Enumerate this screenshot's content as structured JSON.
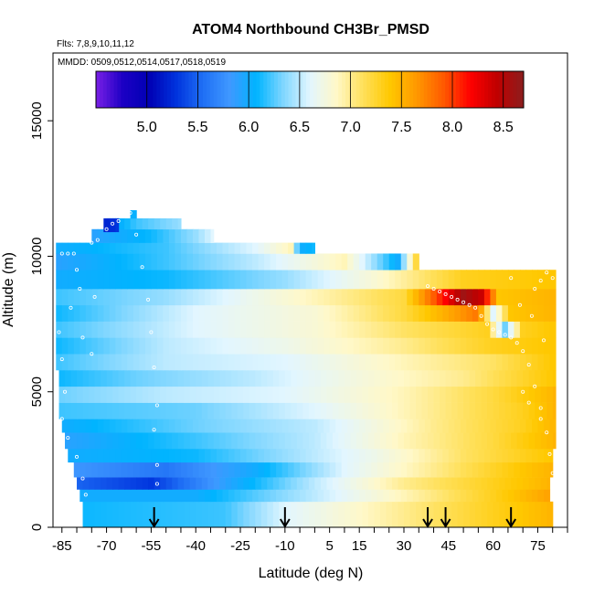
{
  "chart_data": {
    "type": "heatmap",
    "title": "ATOM4 Northbound CH3Br_PMSD",
    "subtitle_flights": "Flts: 7,8,9,10,11,12",
    "subtitle_dates": "MMDD: 0509,0512,0514,0517,0518,0519",
    "xlabel": "Latitude (deg N)",
    "ylabel": "Altitude (m)",
    "xlim": [
      -88,
      85
    ],
    "ylim": [
      0,
      17500
    ],
    "x_ticks": [
      -85,
      -80,
      -75,
      -70,
      -65,
      -60,
      -55,
      -50,
      -45,
      -40,
      -35,
      -30,
      -25,
      -20,
      -15,
      -10,
      -5,
      0,
      5,
      10,
      15,
      20,
      25,
      30,
      35,
      40,
      45,
      50,
      55,
      60,
      65,
      70,
      75,
      80,
      85
    ],
    "x_tick_labels": [
      "-85",
      "-70",
      "-55",
      "-40",
      "-25",
      "-10",
      "5",
      "15",
      "30",
      "45",
      "60",
      "75"
    ],
    "x_tick_label_values": [
      -85,
      -70,
      -55,
      -40,
      -25,
      -10,
      5,
      15,
      30,
      45,
      60,
      75
    ],
    "y_ticks": [
      0,
      5000,
      10000,
      15000
    ],
    "y_tick_labels": [
      "0",
      "5000",
      "10000",
      "15000"
    ],
    "colorbar": {
      "min": 4.5,
      "max": 8.7,
      "ticks": [
        5.0,
        5.5,
        6.0,
        6.5,
        7.0,
        7.5,
        8.0,
        8.5
      ],
      "tick_labels": [
        "5.0",
        "5.5",
        "6.0",
        "6.5",
        "7.0",
        "7.5",
        "8.0",
        "8.5"
      ],
      "colors": [
        "#7a1fe6",
        "#1c00c4",
        "#0000b4",
        "#0033dd",
        "#1f6ff5",
        "#3f98ff",
        "#00b4ff",
        "#7fd6ff",
        "#e2f6ff",
        "#fff8c8",
        "#ffe05a",
        "#ffc800",
        "#ff9800",
        "#ff5a00",
        "#ff0000",
        "#c00000",
        "#8c1e1e"
      ]
    },
    "profile_markers_lat": [
      -54,
      -10,
      38,
      44,
      66
    ],
    "layers": [
      {
        "alt": [
          0,
          950
        ],
        "lat": [
          -78,
          80
        ],
        "values": [
          [
            -78,
            6.1
          ],
          [
            -30,
            6.2
          ],
          [
            -10,
            6.6
          ],
          [
            20,
            6.9
          ],
          [
            50,
            7.2
          ],
          [
            80,
            7.5
          ]
        ]
      },
      {
        "alt": [
          950,
          1400
        ],
        "lat": [
          -79,
          79
        ],
        "values": [
          [
            -79,
            6.0
          ],
          [
            -40,
            6.0
          ],
          [
            0,
            6.5
          ],
          [
            30,
            6.9
          ],
          [
            60,
            7.3
          ],
          [
            79,
            7.6
          ]
        ]
      },
      {
        "alt": [
          1400,
          1850
        ],
        "lat": [
          -80,
          79
        ],
        "values": [
          [
            -80,
            5.5
          ],
          [
            -55,
            5.3
          ],
          [
            -30,
            5.9
          ],
          [
            0,
            6.5
          ],
          [
            30,
            7.0
          ],
          [
            60,
            7.3
          ],
          [
            79,
            7.5
          ]
        ]
      },
      {
        "alt": [
          1850,
          2400
        ],
        "lat": [
          -81,
          80
        ],
        "values": [
          [
            -81,
            5.8
          ],
          [
            -50,
            5.6
          ],
          [
            -20,
            6.0
          ],
          [
            10,
            6.6
          ],
          [
            40,
            7.0
          ],
          [
            70,
            7.4
          ],
          [
            80,
            7.5
          ]
        ]
      },
      {
        "alt": [
          2400,
          2900
        ],
        "lat": [
          -83,
          80
        ],
        "values": [
          [
            -83,
            6.0
          ],
          [
            -40,
            6.1
          ],
          [
            -10,
            6.4
          ],
          [
            20,
            6.7
          ],
          [
            50,
            7.1
          ],
          [
            80,
            7.4
          ]
        ]
      },
      {
        "alt": [
          2900,
          3500
        ],
        "lat": [
          -84,
          81
        ],
        "values": [
          [
            -84,
            5.9
          ],
          [
            -40,
            6.2
          ],
          [
            0,
            6.5
          ],
          [
            30,
            6.9
          ],
          [
            60,
            7.2
          ],
          [
            81,
            7.5
          ]
        ]
      },
      {
        "alt": [
          3500,
          4000
        ],
        "lat": [
          -85,
          81
        ],
        "values": [
          [
            -85,
            6.0
          ],
          [
            -40,
            6.3
          ],
          [
            0,
            6.5
          ],
          [
            40,
            7.0
          ],
          [
            70,
            7.3
          ],
          [
            81,
            7.5
          ]
        ]
      },
      {
        "alt": [
          4000,
          4600
        ],
        "lat": [
          -86,
          81
        ],
        "values": [
          [
            -86,
            6.2
          ],
          [
            -40,
            6.3
          ],
          [
            0,
            6.6
          ],
          [
            40,
            7.0
          ],
          [
            70,
            7.3
          ],
          [
            81,
            7.5
          ]
        ]
      },
      {
        "alt": [
          4600,
          5200
        ],
        "lat": [
          -86,
          81
        ],
        "values": [
          [
            -86,
            6.3
          ],
          [
            -50,
            6.5
          ],
          [
            -10,
            6.6
          ],
          [
            30,
            6.9
          ],
          [
            60,
            7.2
          ],
          [
            81,
            7.5
          ]
        ]
      },
      {
        "alt": [
          5200,
          5800
        ],
        "lat": [
          -86,
          81
        ],
        "values": [
          [
            -86,
            6.1
          ],
          [
            -60,
            6.3
          ],
          [
            -20,
            6.5
          ],
          [
            20,
            6.8
          ],
          [
            50,
            7.0
          ],
          [
            81,
            7.4
          ]
        ]
      },
      {
        "alt": [
          5800,
          6400
        ],
        "lat": [
          -87,
          81
        ],
        "values": [
          [
            -87,
            6.2
          ],
          [
            -50,
            6.5
          ],
          [
            -10,
            6.6
          ],
          [
            30,
            6.9
          ],
          [
            60,
            7.1
          ],
          [
            81,
            7.4
          ]
        ]
      },
      {
        "alt": [
          6400,
          7000
        ],
        "lat": [
          -87,
          81
        ],
        "values": [
          [
            -87,
            6.1
          ],
          [
            -50,
            6.5
          ],
          [
            -10,
            6.7
          ],
          [
            30,
            7.0
          ],
          [
            60,
            7.3
          ],
          [
            81,
            7.4
          ]
        ]
      },
      {
        "alt": [
          7000,
          7600
        ],
        "lat": [
          -87,
          81
        ],
        "values": [
          [
            -87,
            6.2
          ],
          [
            -40,
            6.6
          ],
          [
            0,
            6.8
          ],
          [
            30,
            7.1
          ],
          [
            58,
            7.3
          ],
          [
            64,
            6.3
          ],
          [
            70,
            7.3
          ],
          [
            81,
            7.4
          ]
        ]
      },
      {
        "alt": [
          7600,
          8200
        ],
        "lat": [
          -87,
          81
        ],
        "values": [
          [
            -87,
            6.1
          ],
          [
            -40,
            6.6
          ],
          [
            0,
            6.8
          ],
          [
            30,
            7.2
          ],
          [
            55,
            7.8
          ],
          [
            60,
            6.6
          ],
          [
            66,
            7.4
          ],
          [
            81,
            7.5
          ]
        ]
      },
      {
        "alt": [
          8200,
          8800
        ],
        "lat": [
          -87,
          81
        ],
        "values": [
          [
            -87,
            6.2
          ],
          [
            -50,
            6.4
          ],
          [
            -10,
            6.8
          ],
          [
            30,
            7.2
          ],
          [
            50,
            8.6
          ],
          [
            56,
            8.4
          ],
          [
            62,
            7.4
          ],
          [
            81,
            7.5
          ]
        ]
      },
      {
        "alt": [
          8800,
          9500
        ],
        "lat": [
          -87,
          81
        ],
        "values": [
          [
            -87,
            6.0
          ],
          [
            -50,
            6.1
          ],
          [
            -10,
            6.4
          ],
          [
            20,
            6.8
          ],
          [
            50,
            7.3
          ],
          [
            81,
            7.4
          ]
        ]
      },
      {
        "alt": [
          9500,
          10100
        ],
        "lat": [
          -87,
          35
        ],
        "values": [
          [
            -87,
            5.9
          ],
          [
            -50,
            6.2
          ],
          [
            -20,
            6.5
          ],
          [
            10,
            6.9
          ],
          [
            28,
            6.0
          ],
          [
            35,
            7.4
          ]
        ]
      },
      {
        "alt": [
          10100,
          10500
        ],
        "lat": [
          -87,
          0
        ],
        "values": [
          [
            -87,
            6.0
          ],
          [
            -50,
            6.2
          ],
          [
            -20,
            6.6
          ],
          [
            -8,
            6.9
          ],
          [
            -5,
            6.0
          ],
          [
            0,
            6.1
          ]
        ]
      },
      {
        "alt": [
          10500,
          11000
        ],
        "lat": [
          -75,
          -34
        ],
        "values": [
          [
            -75,
            5.9
          ],
          [
            -55,
            6.1
          ],
          [
            -40,
            6.4
          ],
          [
            -34,
            6.6
          ]
        ]
      },
      {
        "alt": [
          11000,
          11400
        ],
        "lat": [
          -70,
          -45
        ],
        "values": [
          [
            -70,
            5.9
          ],
          [
            -60,
            6.2
          ],
          [
            -45,
            6.4
          ]
        ]
      },
      {
        "alt": [
          11400,
          11700
        ],
        "lat": [
          -62,
          -60
        ],
        "values": [
          [
            -62,
            6.0
          ],
          [
            -60,
            6.1
          ]
        ]
      },
      {
        "alt": [
          10900,
          11400
        ],
        "lat": [
          -71,
          -66
        ],
        "values": [
          [
            -71,
            5.2
          ],
          [
            -66,
            5.3
          ]
        ]
      }
    ],
    "flight_track_points": [
      [
        -85,
        10100
      ],
      [
        -83,
        10100
      ],
      [
        -81,
        10100
      ],
      [
        -80,
        9500
      ],
      [
        -79,
        8800
      ],
      [
        -82,
        8100
      ],
      [
        -86,
        7200
      ],
      [
        -85,
        6200
      ],
      [
        -84,
        5000
      ],
      [
        -85,
        4000
      ],
      [
        -83,
        3300
      ],
      [
        -80,
        2600
      ],
      [
        -78,
        1800
      ],
      [
        -77,
        1200
      ],
      [
        -75,
        10500
      ],
      [
        -73,
        10600
      ],
      [
        -70,
        11000
      ],
      [
        -68,
        11200
      ],
      [
        -66,
        11300
      ],
      [
        -64,
        11500
      ],
      [
        -62,
        11600
      ],
      [
        -60,
        10800
      ],
      [
        -58,
        9600
      ],
      [
        -56,
        8400
      ],
      [
        -55,
        7200
      ],
      [
        -54,
        5900
      ],
      [
        -53,
        4500
      ],
      [
        -54,
        3600
      ],
      [
        -53,
        2300
      ],
      [
        -53,
        1600
      ],
      [
        -74,
        8500
      ],
      [
        -78,
        7000
      ],
      [
        -75,
        6400
      ],
      [
        38,
        8900
      ],
      [
        40,
        8800
      ],
      [
        42,
        8700
      ],
      [
        44,
        8600
      ],
      [
        46,
        8500
      ],
      [
        48,
        8400
      ],
      [
        50,
        8300
      ],
      [
        52,
        8200
      ],
      [
        54,
        8100
      ],
      [
        56,
        7800
      ],
      [
        58,
        7500
      ],
      [
        60,
        7300
      ],
      [
        62,
        7200
      ],
      [
        64,
        7100
      ],
      [
        66,
        7000
      ],
      [
        68,
        6800
      ],
      [
        70,
        6500
      ],
      [
        72,
        6000
      ],
      [
        74,
        5200
      ],
      [
        76,
        4400
      ],
      [
        78,
        3500
      ],
      [
        79,
        2700
      ],
      [
        80,
        2000
      ],
      [
        81,
        1500
      ],
      [
        74,
        8800
      ],
      [
        76,
        9100
      ],
      [
        78,
        9400
      ],
      [
        80,
        9200
      ],
      [
        66,
        9200
      ],
      [
        69,
        8200
      ],
      [
        73,
        7800
      ],
      [
        77,
        6900
      ],
      [
        72,
        4600
      ],
      [
        70,
        5000
      ],
      [
        76,
        4000
      ]
    ]
  }
}
